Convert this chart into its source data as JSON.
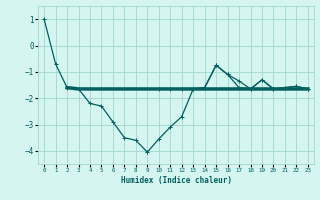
{
  "xlabel": "Humidex (Indice chaleur)",
  "ylabel": "",
  "bg_color": "#d4f5f0",
  "grid_color": "#a0d8d0",
  "line_color": "#006060",
  "xlim": [
    -0.5,
    23.5
  ],
  "ylim": [
    -4.5,
    1.5
  ],
  "yticks": [
    -4,
    -3,
    -2,
    -1,
    0,
    1
  ],
  "xticks": [
    0,
    1,
    2,
    3,
    4,
    5,
    6,
    7,
    8,
    9,
    10,
    11,
    12,
    13,
    14,
    15,
    16,
    17,
    18,
    19,
    20,
    21,
    22,
    23
  ],
  "curve1_x": [
    0,
    1,
    2,
    3,
    4,
    5,
    6,
    7,
    8,
    9,
    10,
    11,
    12,
    13,
    14,
    15,
    16,
    17,
    18,
    19,
    20,
    21,
    22,
    23
  ],
  "curve1_y": [
    1.0,
    -0.7,
    -1.6,
    -1.65,
    -2.2,
    -2.3,
    -2.9,
    -3.5,
    -3.6,
    -4.05,
    -3.55,
    -3.1,
    -2.7,
    -1.65,
    -1.6,
    -0.75,
    -1.1,
    -1.6,
    -1.65,
    -1.3,
    -1.65,
    -1.6,
    -1.55,
    -1.65
  ],
  "curve2_x": [
    2,
    3,
    4,
    5,
    6,
    7,
    8,
    9,
    10,
    11,
    12,
    13,
    14,
    15,
    16,
    17,
    18,
    19,
    20,
    21,
    22,
    23
  ],
  "curve2_y": [
    -1.6,
    -1.65,
    -1.65,
    -1.65,
    -1.65,
    -1.65,
    -1.65,
    -1.65,
    -1.65,
    -1.65,
    -1.65,
    -1.65,
    -1.65,
    -1.65,
    -1.65,
    -1.65,
    -1.65,
    -1.65,
    -1.65,
    -1.65,
    -1.65,
    -1.65
  ],
  "curve3_x": [
    10,
    11,
    12,
    13,
    14,
    15,
    16,
    17,
    18,
    19,
    20,
    21,
    22,
    23
  ],
  "curve3_y": [
    -1.65,
    -1.65,
    -1.65,
    -1.65,
    -1.6,
    -0.75,
    -1.1,
    -1.35,
    -1.65,
    -1.3,
    -1.65,
    -1.6,
    -1.55,
    -1.65
  ]
}
